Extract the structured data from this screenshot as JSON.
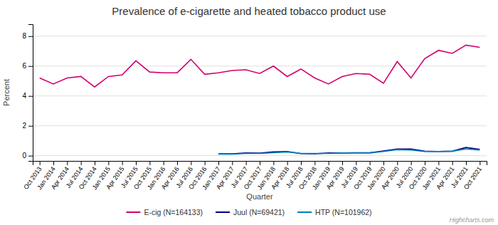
{
  "chart_data": {
    "type": "line",
    "title": "Prevalence of e-cigarette and heated tobacco product use",
    "xlabel": "Quarter",
    "ylabel": "Percent",
    "annotations": [
      "Highcharts.com"
    ],
    "categories": [
      "Oct 2013",
      "Jan 2014",
      "Apr 2014",
      "Jul 2014",
      "Oct 2014",
      "Jan 2015",
      "Apr 2015",
      "Jul 2015",
      "Oct 2015",
      "Jan 2016",
      "Apr 2016",
      "Jul 2016",
      "Oct 2016",
      "Jan 2017",
      "Apr 2017",
      "Jul 2017",
      "Oct 2017",
      "Jan 2018",
      "Apr 2018",
      "Jul 2018",
      "Oct 2018",
      "Jan 2019",
      "Apr 2019",
      "Jul 2019",
      "Oct 2019",
      "Jan 2020",
      "Apr 2020",
      "Jul 2020",
      "Oct 2020",
      "Jan 2021",
      "Apr 2021",
      "Jul 2021",
      "Oct 2021"
    ],
    "series": [
      {
        "name": "E-cig (N=164133)",
        "color": "#d4006e",
        "values": [
          5.2,
          4.8,
          5.2,
          5.3,
          4.6,
          5.3,
          5.4,
          6.35,
          5.6,
          5.55,
          5.55,
          6.45,
          5.45,
          5.55,
          5.7,
          5.75,
          5.5,
          6.0,
          5.3,
          5.8,
          5.2,
          4.8,
          5.3,
          5.5,
          5.45,
          4.85,
          6.3,
          5.2,
          6.5,
          7.05,
          6.85,
          7.4,
          7.25
        ]
      },
      {
        "name": "Juul (N=69421)",
        "color": "#00007a",
        "values": [
          null,
          null,
          null,
          null,
          null,
          null,
          null,
          null,
          null,
          null,
          null,
          null,
          null,
          0.13,
          0.13,
          0.18,
          0.17,
          0.25,
          0.28,
          0.14,
          0.13,
          0.18,
          0.18,
          0.2,
          0.2,
          0.32,
          0.45,
          0.45,
          0.3,
          0.28,
          0.3,
          0.55,
          0.42
        ]
      },
      {
        "name": "HTP (N=101962)",
        "color": "#007fbe",
        "values": [
          null,
          null,
          null,
          null,
          null,
          null,
          null,
          null,
          null,
          null,
          null,
          null,
          null,
          0.1,
          0.1,
          0.15,
          0.15,
          0.2,
          0.25,
          0.15,
          0.15,
          0.15,
          0.18,
          0.18,
          0.18,
          0.28,
          0.4,
          0.38,
          0.28,
          0.28,
          0.3,
          0.45,
          0.38
        ]
      }
    ],
    "ylim": [
      -0.35,
      8.8
    ],
    "yticks": [
      0,
      2,
      4,
      6,
      8
    ],
    "grid": true,
    "legend": "bottom"
  }
}
